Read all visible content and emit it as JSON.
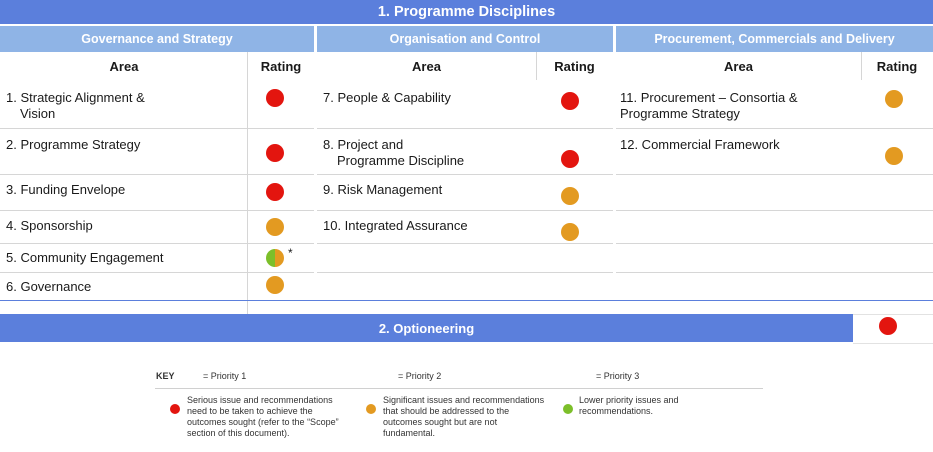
{
  "title": "1. Programme Disciplines",
  "sections": [
    {
      "heading": "Governance and Strategy",
      "area_header": "Area",
      "rating_header": "Rating"
    },
    {
      "heading": "Organisation and Control",
      "area_header": "Area",
      "rating_header": "Rating"
    },
    {
      "heading": "Procurement, Commercials and Delivery",
      "area_header": "Area",
      "rating_header": "Rating"
    }
  ],
  "col1_rows": [
    {
      "line1": "1. Strategic Alignment &",
      "line2": "Vision",
      "rating": "red"
    },
    {
      "line1": "2. Programme Strategy",
      "line2": "",
      "rating": "red"
    },
    {
      "line1": "3. Funding Envelope",
      "line2": "",
      "rating": "red"
    },
    {
      "line1": "4. Sponsorship",
      "line2": "",
      "rating": "amber"
    },
    {
      "line1": "5. Community Engagement",
      "line2": "",
      "rating": "green/amber",
      "note": "*"
    },
    {
      "line1": "6. Governance",
      "line2": "",
      "rating": "amber"
    }
  ],
  "col2_rows": [
    {
      "line1": "7. People & Capability",
      "line2": "",
      "rating": "red"
    },
    {
      "line1": "8. Project and",
      "line2": "Programme Discipline",
      "rating": "red"
    },
    {
      "line1": "9. Risk Management",
      "line2": "",
      "rating": "amber"
    },
    {
      "line1": "10. Integrated Assurance",
      "line2": "",
      "rating": "amber"
    }
  ],
  "col3_rows": [
    {
      "line1": "11. Procurement – Consortia &",
      "line2": "Programme Strategy",
      "rating": "amber"
    },
    {
      "line1": "12. Commercial Framework",
      "line2": "",
      "rating": "amber"
    }
  ],
  "optioneering": {
    "label": "2. Optioneering",
    "rating": "red"
  },
  "key": {
    "title": "KEY",
    "p1_label": "= Priority 1",
    "p2_label": "= Priority 2",
    "p3_label": "= Priority 3",
    "p1_text": [
      "Serious issue and recommendations",
      "need to be taken to achieve the",
      "outcomes sought (refer to the “Scope”",
      "section of this document)."
    ],
    "p2_text": [
      "Significant issues and recommendations",
      "that should be addressed to the",
      "outcomes sought but are not",
      "fundamental."
    ],
    "p3_text": [
      "Lower priority issues and",
      "recommendations."
    ]
  },
  "colors": {
    "red": "#e3150f",
    "amber": "#e39a21",
    "green": "#7cbf2a",
    "banner": "#5b7fdc",
    "section": "#8fb4e6"
  }
}
